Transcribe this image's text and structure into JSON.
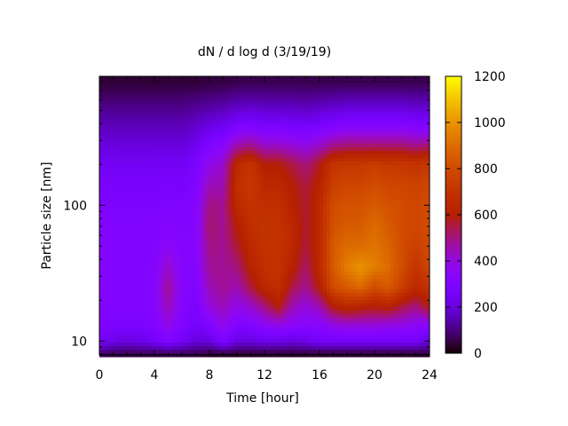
{
  "chart_data": {
    "type": "heatmap",
    "title": "dN / d log d (3/19/19)",
    "xlabel": "Time [hour]",
    "ylabel": "Particle size [nm]",
    "xlim": [
      0,
      24
    ],
    "ylim": [
      7.9,
      890
    ],
    "yscale": "log",
    "xticks": [
      "0",
      "4",
      "8",
      "12",
      "16",
      "20",
      "24"
    ],
    "yticks": [
      "10",
      "100"
    ],
    "colorbar": {
      "range": [
        0,
        1200
      ],
      "ticks": [
        "0",
        "200",
        "400",
        "600",
        "800",
        "1000",
        "1200"
      ],
      "palette": "black-purple-red-orange-yellow"
    },
    "x": [
      0,
      1,
      2,
      3,
      4,
      5,
      6,
      7,
      8,
      9,
      10,
      11,
      12,
      13,
      14,
      15,
      16,
      17,
      18,
      19,
      20,
      21,
      22,
      23,
      24
    ],
    "y": [
      8,
      10,
      13,
      18,
      25,
      35,
      50,
      70,
      100,
      140,
      200,
      280,
      400,
      560,
      800
    ],
    "z": [
      [
        80,
        60,
        60,
        60,
        60,
        60,
        60,
        60,
        40,
        40,
        40,
        40,
        40,
        40,
        40,
        40,
        40,
        40,
        40,
        40,
        40,
        40,
        40,
        40,
        40
      ],
      [
        250,
        220,
        200,
        220,
        250,
        300,
        250,
        200,
        200,
        300,
        200,
        200,
        220,
        220,
        200,
        220,
        250,
        250,
        250,
        250,
        250,
        250,
        250,
        250,
        200
      ],
      [
        300,
        280,
        280,
        280,
        300,
        380,
        300,
        250,
        300,
        380,
        300,
        300,
        350,
        380,
        350,
        330,
        330,
        380,
        400,
        400,
        400,
        380,
        380,
        350,
        330
      ],
      [
        320,
        300,
        300,
        300,
        330,
        450,
        320,
        280,
        400,
        450,
        380,
        420,
        500,
        600,
        450,
        400,
        450,
        600,
        650,
        620,
        600,
        620,
        550,
        500,
        600
      ],
      [
        330,
        300,
        300,
        300,
        330,
        480,
        330,
        300,
        450,
        480,
        450,
        550,
        650,
        680,
        550,
        480,
        600,
        800,
        850,
        900,
        800,
        850,
        750,
        650,
        700
      ],
      [
        330,
        300,
        300,
        300,
        320,
        420,
        320,
        320,
        480,
        480,
        500,
        620,
        680,
        700,
        620,
        520,
        650,
        850,
        950,
        1000,
        950,
        900,
        800,
        700,
        780
      ],
      [
        330,
        300,
        300,
        300,
        310,
        350,
        320,
        320,
        500,
        480,
        560,
        650,
        700,
        700,
        650,
        550,
        650,
        850,
        900,
        900,
        920,
        880,
        800,
        750,
        800
      ],
      [
        320,
        300,
        300,
        300,
        300,
        320,
        300,
        320,
        520,
        480,
        600,
        680,
        700,
        700,
        650,
        560,
        650,
        820,
        850,
        850,
        900,
        850,
        800,
        780,
        800
      ],
      [
        300,
        290,
        290,
        290,
        290,
        300,
        290,
        320,
        500,
        480,
        650,
        700,
        680,
        680,
        620,
        560,
        650,
        800,
        820,
        820,
        850,
        820,
        800,
        780,
        800
      ],
      [
        280,
        270,
        270,
        270,
        270,
        280,
        270,
        300,
        450,
        450,
        680,
        720,
        650,
        650,
        600,
        550,
        620,
        750,
        780,
        780,
        800,
        780,
        780,
        760,
        780
      ],
      [
        250,
        240,
        240,
        240,
        240,
        250,
        240,
        280,
        380,
        420,
        650,
        700,
        600,
        600,
        550,
        500,
        580,
        700,
        720,
        720,
        740,
        720,
        720,
        700,
        720
      ],
      [
        200,
        200,
        200,
        200,
        200,
        200,
        200,
        230,
        300,
        330,
        450,
        480,
        420,
        420,
        400,
        380,
        420,
        480,
        500,
        500,
        500,
        500,
        500,
        480,
        500
      ],
      [
        150,
        150,
        150,
        150,
        150,
        150,
        150,
        170,
        200,
        220,
        260,
        280,
        260,
        260,
        250,
        240,
        260,
        280,
        300,
        300,
        300,
        300,
        300,
        280,
        280
      ],
      [
        100,
        100,
        100,
        100,
        100,
        100,
        100,
        110,
        120,
        130,
        150,
        160,
        150,
        150,
        150,
        140,
        150,
        160,
        170,
        170,
        170,
        170,
        170,
        160,
        160
      ],
      [
        40,
        40,
        40,
        40,
        40,
        40,
        40,
        40,
        50,
        50,
        60,
        60,
        60,
        60,
        60,
        60,
        60,
        60,
        60,
        60,
        60,
        60,
        60,
        60,
        60
      ]
    ]
  }
}
